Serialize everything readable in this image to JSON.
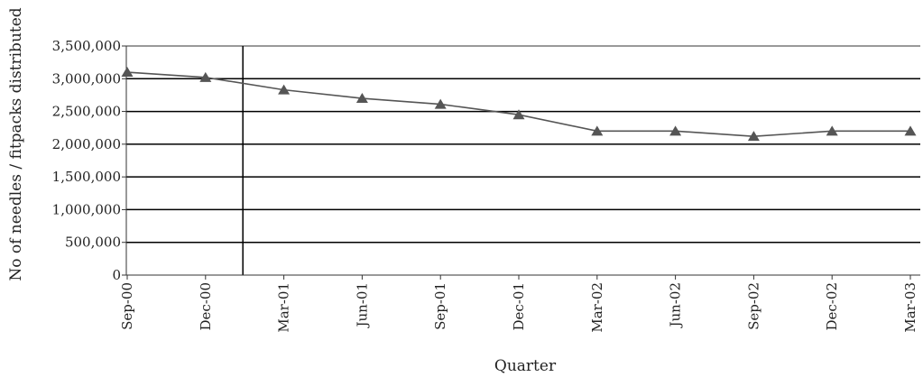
{
  "chart_data": {
    "type": "line",
    "title": "",
    "xlabel": "Quarter",
    "ylabel": "No of needles / fitpacks distributed",
    "categories": [
      "Sep-00",
      "Dec-00",
      "Mar-01",
      "Jun-01",
      "Sep-01",
      "Dec-01",
      "Mar-02",
      "Jun-02",
      "Sep-02",
      "Dec-02",
      "Mar-03"
    ],
    "series": [
      {
        "values": [
          3100000,
          3020000,
          2830000,
          2700000,
          2610000,
          2450000,
          2200000,
          2200000,
          2120000,
          2200000,
          2200000
        ]
      }
    ],
    "ylim": [
      0,
      3500000
    ],
    "yticks": [
      0,
      500000,
      1000000,
      1500000,
      2000000,
      2500000,
      3000000,
      3500000
    ],
    "ytick_labels": [
      "0",
      "500,000",
      "1,000,000",
      "1,500,000",
      "2,000,000",
      "2,500,000",
      "3,000,000",
      "3,500,000"
    ],
    "grid": true,
    "marker": "triangle",
    "divider_between": [
      "Dec-00",
      "Mar-01"
    ],
    "colors": {
      "line": "#555555",
      "marker": "#555555",
      "grid": "#000000",
      "top_grid": "#999999",
      "axis": "#333333"
    }
  }
}
